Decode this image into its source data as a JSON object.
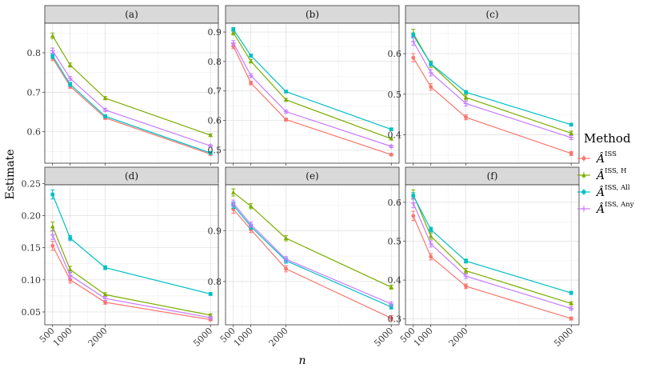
{
  "chart_data": {
    "type": "line",
    "layout": "facet-grid 2x3",
    "xlabel": "n",
    "ylabel": "Estimate",
    "x": [
      500,
      1000,
      2000,
      5000
    ],
    "x_tick_labels": [
      "500",
      "1000",
      "2000",
      "5000"
    ],
    "legend": {
      "title": "Method",
      "position": "right",
      "entries": [
        {
          "base": "Â",
          "sup": "ISS",
          "color": "#F8766D",
          "marker": "circle"
        },
        {
          "base": "Â",
          "sup": "ISS, H",
          "color": "#7CAE00",
          "marker": "triangle"
        },
        {
          "base": "Â",
          "sup": "ISS, All",
          "color": "#00BFC4",
          "marker": "square"
        },
        {
          "base": "Â",
          "sup": "ISS, Any",
          "color": "#C77CFF",
          "marker": "cross"
        }
      ]
    },
    "panels": [
      {
        "label": "(a)",
        "ylim": [
          0.52,
          0.875
        ],
        "yticks": [
          0.6,
          0.7,
          0.8
        ],
        "ytick_labels": [
          "0.6",
          "0.7",
          "0.8"
        ],
        "series": [
          {
            "name": "ISS",
            "values": [
              0.787,
              0.715,
              0.635,
              0.543
            ],
            "err": [
              0.007,
              0.005,
              0.004,
              0.003
            ]
          },
          {
            "name": "ISS, H",
            "values": [
              0.843,
              0.769,
              0.685,
              0.591
            ],
            "err": [
              0.007,
              0.005,
              0.004,
              0.003
            ]
          },
          {
            "name": "ISS, All",
            "values": [
              0.792,
              0.72,
              0.639,
              0.546
            ],
            "err": [
              0.007,
              0.005,
              0.004,
              0.003
            ]
          },
          {
            "name": "ISS, Any",
            "values": [
              0.805,
              0.735,
              0.655,
              0.564
            ],
            "err": [
              0.007,
              0.005,
              0.004,
              0.003
            ]
          }
        ]
      },
      {
        "label": "(b)",
        "ylim": [
          0.455,
          0.93
        ],
        "yticks": [
          0.5,
          0.6,
          0.7,
          0.8,
          0.9
        ],
        "ytick_labels": [
          "0.5",
          "0.6",
          "0.7",
          "0.8",
          "0.9"
        ],
        "series": [
          {
            "name": "ISS",
            "values": [
              0.852,
              0.727,
              0.603,
              0.484
            ],
            "err": [
              0.008,
              0.006,
              0.005,
              0.004
            ]
          },
          {
            "name": "ISS, H",
            "values": [
              0.898,
              0.801,
              0.67,
              0.538
            ],
            "err": [
              0.008,
              0.006,
              0.005,
              0.004
            ]
          },
          {
            "name": "ISS, All",
            "values": [
              0.909,
              0.82,
              0.698,
              0.57
            ],
            "err": [
              0.006,
              0.005,
              0.004,
              0.003
            ]
          },
          {
            "name": "ISS, Any",
            "values": [
              0.863,
              0.752,
              0.63,
              0.512
            ],
            "err": [
              0.008,
              0.006,
              0.005,
              0.004
            ]
          }
        ]
      },
      {
        "label": "(c)",
        "ylim": [
          0.33,
          0.675
        ],
        "yticks": [
          0.4,
          0.5,
          0.6
        ],
        "ytick_labels": [
          "0.4",
          "0.5",
          "0.6"
        ],
        "series": [
          {
            "name": "ISS",
            "values": [
              0.59,
              0.518,
              0.443,
              0.354
            ],
            "err": [
              0.01,
              0.008,
              0.006,
              0.005
            ]
          },
          {
            "name": "ISS, H",
            "values": [
              0.65,
              0.574,
              0.492,
              0.404
            ],
            "err": [
              0.01,
              0.008,
              0.006,
              0.005
            ]
          },
          {
            "name": "ISS, All",
            "values": [
              0.645,
              0.575,
              0.505,
              0.425
            ],
            "err": [
              0.006,
              0.005,
              0.004,
              0.003
            ]
          },
          {
            "name": "ISS, Any",
            "values": [
              0.63,
              0.553,
              0.477,
              0.393
            ],
            "err": [
              0.01,
              0.008,
              0.006,
              0.005
            ]
          }
        ]
      },
      {
        "label": "(d)",
        "ylim": [
          0.03,
          0.248
        ],
        "yticks": [
          0.05,
          0.1,
          0.15,
          0.2,
          0.25
        ],
        "ytick_labels": [
          "0.05",
          "0.10",
          "0.15",
          "0.20",
          "0.25"
        ],
        "series": [
          {
            "name": "ISS",
            "values": [
              0.153,
              0.1,
              0.065,
              0.038
            ],
            "err": [
              0.007,
              0.005,
              0.003,
              0.002
            ]
          },
          {
            "name": "ISS, H",
            "values": [
              0.183,
              0.116,
              0.077,
              0.045
            ],
            "err": [
              0.007,
              0.005,
              0.003,
              0.002
            ]
          },
          {
            "name": "ISS, All",
            "values": [
              0.233,
              0.165,
              0.119,
              0.078
            ],
            "err": [
              0.007,
              0.004,
              0.003,
              0.002
            ]
          },
          {
            "name": "ISS, Any",
            "values": [
              0.17,
              0.107,
              0.071,
              0.041
            ],
            "err": [
              0.007,
              0.005,
              0.003,
              0.002
            ]
          }
        ]
      },
      {
        "label": "(e)",
        "ylim": [
          0.715,
          0.99
        ],
        "yticks": [
          0.8,
          0.9
        ],
        "ytick_labels": [
          "0.8",
          "0.9"
        ],
        "series": [
          {
            "name": "ISS",
            "values": [
              0.942,
              0.902,
              0.825,
              0.728
            ],
            "err": [
              0.008,
              0.006,
              0.006,
              0.005
            ]
          },
          {
            "name": "ISS, H",
            "values": [
              0.975,
              0.948,
              0.885,
              0.789
            ],
            "err": [
              0.007,
              0.005,
              0.005,
              0.004
            ]
          },
          {
            "name": "ISS, All",
            "values": [
              0.95,
              0.908,
              0.841,
              0.75
            ],
            "err": [
              0.006,
              0.005,
              0.005,
              0.004
            ]
          },
          {
            "name": "ISS, Any",
            "values": [
              0.954,
              0.912,
              0.844,
              0.756
            ],
            "err": [
              0.006,
              0.005,
              0.005,
              0.004
            ]
          }
        ]
      },
      {
        "label": "(f)",
        "ylim": [
          0.285,
          0.645
        ],
        "yticks": [
          0.3,
          0.4,
          0.5,
          0.6
        ],
        "ytick_labels": [
          "0.3",
          "0.4",
          "0.5",
          "0.6"
        ],
        "series": [
          {
            "name": "ISS",
            "values": [
              0.565,
              0.46,
              0.384,
              0.301
            ],
            "err": [
              0.012,
              0.008,
              0.006,
              0.004
            ]
          },
          {
            "name": "ISS, H",
            "values": [
              0.62,
              0.513,
              0.424,
              0.34
            ],
            "err": [
              0.012,
              0.008,
              0.006,
              0.004
            ]
          },
          {
            "name": "ISS, All",
            "values": [
              0.617,
              0.53,
              0.449,
              0.367
            ],
            "err": [
              0.008,
              0.006,
              0.005,
              0.004
            ]
          },
          {
            "name": "ISS, Any",
            "values": [
              0.598,
              0.493,
              0.41,
              0.327
            ],
            "err": [
              0.012,
              0.008,
              0.006,
              0.004
            ]
          }
        ]
      }
    ]
  }
}
